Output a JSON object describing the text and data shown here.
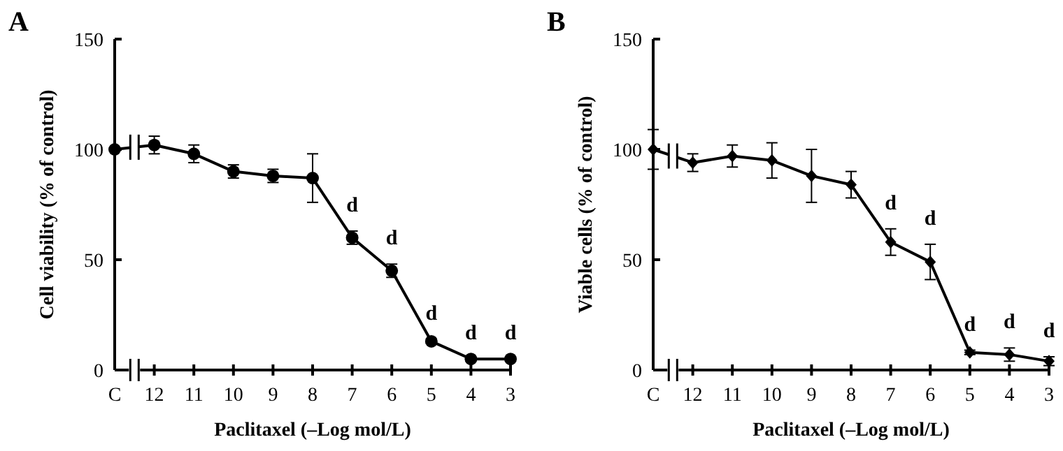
{
  "chart_data": [
    {
      "type": "line",
      "title": "A",
      "xlabel": "Paclitaxel (–Log mol/L)",
      "ylabel": "Cell viability (% of control)",
      "categories": [
        "C",
        "12",
        "11",
        "10",
        "9",
        "8",
        "7",
        "6",
        "5",
        "4",
        "3"
      ],
      "series": [
        {
          "color": "#000000",
          "values": [
            100,
            102,
            98,
            90,
            88,
            87,
            60,
            45,
            13,
            5,
            5
          ],
          "errors": [
            null,
            4,
            4,
            3,
            3,
            11,
            3,
            3,
            1,
            null,
            null
          ]
        }
      ],
      "ylim": [
        0,
        150
      ],
      "yticks": [
        0,
        50,
        100,
        150
      ],
      "marker": "circle",
      "line_style": "solid",
      "annotations": [
        {
          "text": "d",
          "x": "7",
          "y": 60
        },
        {
          "text": "d",
          "x": "6",
          "y": 45
        },
        {
          "text": "d",
          "x": "5",
          "y": 13
        },
        {
          "text": "d",
          "x": "4",
          "y": 5
        },
        {
          "text": "d",
          "x": "3",
          "y": 5
        }
      ]
    },
    {
      "type": "line",
      "title": "B",
      "xlabel": "Paclitaxel (–Log mol/L)",
      "ylabel": "Viable cells (% of control)",
      "categories": [
        "C",
        "12",
        "11",
        "10",
        "9",
        "8",
        "7",
        "6",
        "5",
        "4",
        "3"
      ],
      "series": [
        {
          "color": "#000000",
          "values": [
            100,
            94,
            97,
            95,
            88,
            84,
            58,
            49,
            8,
            7,
            4
          ],
          "errors": [
            9,
            4,
            5,
            8,
            12,
            6,
            6,
            8,
            1,
            3,
            2
          ]
        }
      ],
      "ylim": [
        0,
        150
      ],
      "yticks": [
        0,
        50,
        100,
        150
      ],
      "marker": "diamond",
      "line_style": "solid",
      "annotations": [
        {
          "text": "d",
          "x": "7",
          "y": 58
        },
        {
          "text": "d",
          "x": "6",
          "y": 49
        },
        {
          "text": "d",
          "x": "5",
          "y": 8
        },
        {
          "text": "d",
          "x": "4",
          "y": 7
        },
        {
          "text": "d",
          "x": "3",
          "y": 4
        }
      ]
    }
  ]
}
